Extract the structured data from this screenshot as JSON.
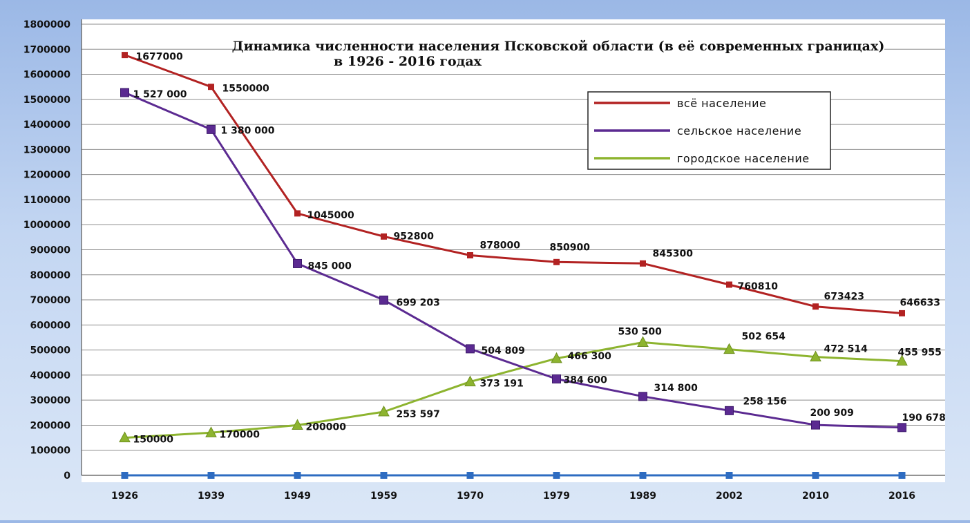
{
  "chart_data": {
    "type": "line",
    "title": "Динамика численности населения Псковской области (в её современных границах)",
    "subtitle": "в 1926 - 2016 годах",
    "categories": [
      "1926",
      "1939",
      "1949",
      "1959",
      "1970",
      "1979",
      "1989",
      "2002",
      "2010",
      "2016"
    ],
    "y_ticks": [
      "0",
      "100000",
      "200000",
      "300000",
      "400000",
      "500000",
      "600000",
      "700000",
      "800000",
      "900000",
      "1000000",
      "1100000",
      "1200000",
      "1300000",
      "1400000",
      "1500000",
      "1600000",
      "1700000",
      "1800000"
    ],
    "ylim": [
      0,
      1800000
    ],
    "grid": true,
    "legend_position": "top-right",
    "series": [
      {
        "name": "всё население",
        "color": "#b22222",
        "marker": "square",
        "values": [
          1677000,
          1550000,
          1045000,
          952800,
          878000,
          850900,
          845300,
          760810,
          673423,
          646633
        ],
        "labels": [
          "1677000",
          "1550000",
          "1045000",
          "952800",
          "878000",
          "850900",
          "845300",
          "760810",
          "673423",
          "646633"
        ]
      },
      {
        "name": "сельское население",
        "color": "#5b2a91",
        "marker": "square",
        "values": [
          1527000,
          1380000,
          845000,
          699203,
          504809,
          384600,
          314800,
          258156,
          200909,
          190678
        ],
        "labels": [
          "1 527 000",
          "1 380 000",
          "845 000",
          "699 203",
          "504 809",
          "384 600",
          "314 800",
          "258 156",
          "200 909",
          "190 678"
        ]
      },
      {
        "name": "городское население",
        "color": "#8db42f",
        "marker": "triangle",
        "values": [
          150000,
          170000,
          200000,
          253597,
          373191,
          466300,
          530500,
          502654,
          472514,
          455955
        ],
        "labels": [
          "150000",
          "170000",
          "200000",
          "253 597",
          "373 191",
          "466 300",
          "530 500",
          "502 654",
          "472 514",
          "455 955"
        ]
      },
      {
        "color": "#2e6cc1",
        "marker": "square",
        "values": [
          0,
          0,
          0,
          0,
          0,
          0,
          0,
          0,
          0,
          0
        ]
      }
    ]
  }
}
